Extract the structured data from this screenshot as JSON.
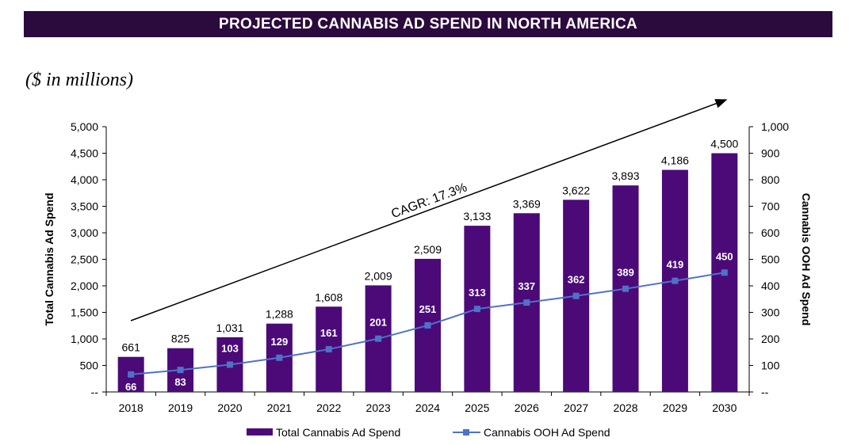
{
  "header": {
    "title": "PROJECTED CANNABIS  AD SPEND IN NORTH AMERICA"
  },
  "units_label": "($ in millions)",
  "chart_data": {
    "type": "bar",
    "categories": [
      "2018",
      "2019",
      "2020",
      "2021",
      "2022",
      "2023",
      "2024",
      "2025",
      "2026",
      "2027",
      "2028",
      "2029",
      "2030"
    ],
    "series": [
      {
        "name": "Total Cannabis Ad Spend",
        "type": "bar",
        "axis": "left",
        "color": "#4b0a78",
        "values": [
          661,
          825,
          1031,
          1288,
          1608,
          2009,
          2509,
          3133,
          3369,
          3622,
          3893,
          4186,
          4500
        ],
        "labels": [
          "661",
          "825",
          "1,031",
          "1,288",
          "1,608",
          "2,009",
          "2,509",
          "3,133",
          "3,369",
          "3,622",
          "3,893",
          "4,186",
          "4,500"
        ]
      },
      {
        "name": "Cannabis OOH Ad Spend",
        "type": "line",
        "axis": "right",
        "color": "#4f72c9",
        "values": [
          66,
          83,
          103,
          129,
          161,
          201,
          251,
          313,
          337,
          362,
          389,
          419,
          450
        ],
        "labels": [
          "66",
          "83",
          "103",
          "129",
          "161",
          "201",
          "251",
          "313",
          "337",
          "362",
          "389",
          "419",
          "450"
        ]
      }
    ],
    "ylabel": "Total Cannabis Ad Spend",
    "y2label": "Cannabis OOH Ad Spend",
    "ylim": [
      0,
      5000
    ],
    "y2lim": [
      0,
      1000
    ],
    "yticks": [
      "--",
      "500",
      "1,000",
      "1,500",
      "2,000",
      "2,500",
      "3,000",
      "3,500",
      "4,000",
      "4,500",
      "5,000"
    ],
    "y2ticks": [
      "--",
      "100",
      "200",
      "300",
      "400",
      "500",
      "600",
      "700",
      "800",
      "900",
      "1,000"
    ],
    "annotation": "CAGR: 17.3%",
    "legend_position": "bottom",
    "grid": false
  }
}
